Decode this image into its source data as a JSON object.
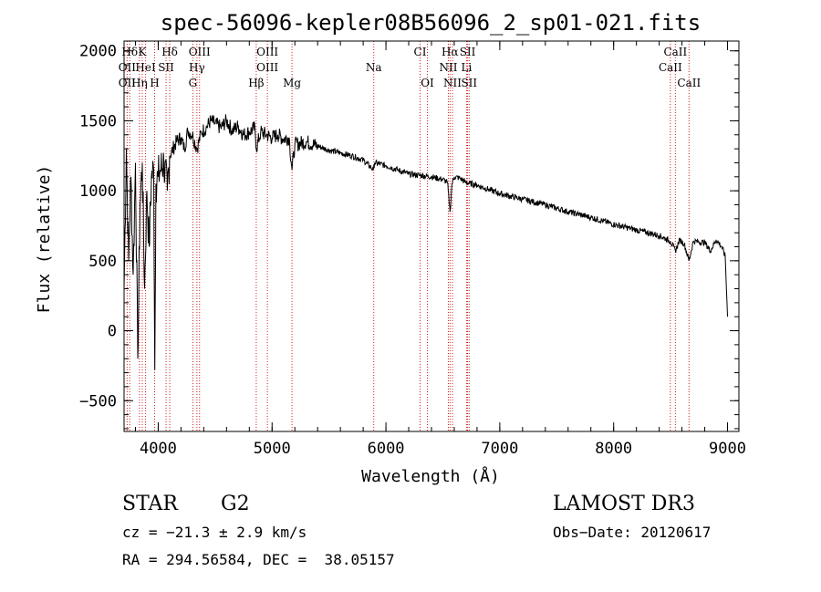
{
  "chart_data": {
    "type": "line",
    "title": "spec-56096-kepler08B56096_2_sp01-021.fits",
    "xlabel": "Wavelength (Å)",
    "ylabel": "Flux (relative)",
    "xlim": [
      3700,
      9100
    ],
    "ylim": [
      -720,
      2070
    ],
    "x_ticks": [
      4000,
      5000,
      6000,
      7000,
      8000,
      9000
    ],
    "y_ticks": [
      -500,
      0,
      500,
      1000,
      1500,
      2000
    ],
    "series": [
      {
        "name": "flux",
        "x": [
          3700,
          3720,
          3740,
          3760,
          3780,
          3800,
          3820,
          3840,
          3860,
          3880,
          3900,
          3920,
          3940,
          3960,
          3970,
          3980,
          4000,
          4020,
          4050,
          4080,
          4100,
          4130,
          4160,
          4200,
          4230,
          4260,
          4300,
          4340,
          4380,
          4420,
          4460,
          4500,
          4550,
          4600,
          4650,
          4700,
          4750,
          4800,
          4850,
          4861,
          4900,
          4950,
          5000,
          5050,
          5100,
          5150,
          5175,
          5200,
          5300,
          5400,
          5500,
          5600,
          5700,
          5800,
          5890,
          5900,
          6000,
          6100,
          6200,
          6300,
          6400,
          6500,
          6540,
          6563,
          6580,
          6600,
          6650,
          6700,
          6800,
          6900,
          7000,
          7200,
          7400,
          7600,
          7800,
          8000,
          8200,
          8400,
          8498,
          8542,
          8580,
          8620,
          8662,
          8700,
          8800,
          8850,
          8900,
          8950,
          8980,
          9000
        ],
        "values": [
          300,
          1300,
          500,
          1100,
          400,
          1200,
          -200,
          900,
          1200,
          300,
          1000,
          600,
          1100,
          1150,
          -280,
          1050,
          1100,
          1150,
          1200,
          1000,
          1250,
          1300,
          1350,
          1380,
          1300,
          1430,
          1400,
          1300,
          1420,
          1450,
          1500,
          1480,
          1450,
          1500,
          1430,
          1460,
          1400,
          1420,
          1450,
          1300,
          1420,
          1400,
          1380,
          1400,
          1370,
          1380,
          1150,
          1330,
          1350,
          1320,
          1290,
          1270,
          1250,
          1220,
          1150,
          1200,
          1180,
          1150,
          1120,
          1110,
          1100,
          1080,
          1060,
          850,
          1050,
          1100,
          1090,
          1060,
          1040,
          1010,
          980,
          940,
          900,
          850,
          810,
          760,
          720,
          680,
          640,
          570,
          650,
          620,
          500,
          640,
          630,
          570,
          650,
          600,
          530,
          100
        ]
      }
    ],
    "spectral_lines": [
      {
        "label": "Hδ",
        "x": 3750,
        "row": 0
      },
      {
        "label": "K",
        "x": 3860,
        "row": 0
      },
      {
        "label": "Hδ",
        "x": 4101,
        "row": 0
      },
      {
        "label": "OIII",
        "x": 4363,
        "row": 0
      },
      {
        "label": "OIII",
        "x": 4959,
        "row": 0
      },
      {
        "label": "CI",
        "x": 6300,
        "row": 0
      },
      {
        "label": "Hα",
        "x": 6563,
        "row": 0
      },
      {
        "label": "SII",
        "x": 6717,
        "row": 0
      },
      {
        "label": "CaII",
        "x": 8542,
        "row": 0
      },
      {
        "label": "OII",
        "x": 3727,
        "row": 1
      },
      {
        "label": "HeI",
        "x": 3889,
        "row": 1
      },
      {
        "label": "SII",
        "x": 4069,
        "row": 1
      },
      {
        "label": "Hγ",
        "x": 4340,
        "row": 1
      },
      {
        "label": "OIII",
        "x": 4959,
        "row": 1
      },
      {
        "label": "Na",
        "x": 5893,
        "row": 1
      },
      {
        "label": "NII",
        "x": 6548,
        "row": 1
      },
      {
        "label": "Li",
        "x": 6708,
        "row": 1
      },
      {
        "label": "CaII",
        "x": 8498,
        "row": 1
      },
      {
        "label": "OII",
        "x": 3727,
        "row": 2
      },
      {
        "label": "Hη",
        "x": 3835,
        "row": 2
      },
      {
        "label": "H",
        "x": 3968,
        "row": 2
      },
      {
        "label": "G",
        "x": 4304,
        "row": 2
      },
      {
        "label": "Hβ",
        "x": 4861,
        "row": 2
      },
      {
        "label": "Mg",
        "x": 5175,
        "row": 2
      },
      {
        "label": "OI",
        "x": 6364,
        "row": 2
      },
      {
        "label": "NII",
        "x": 6584,
        "row": 2
      },
      {
        "label": "SII",
        "x": 6731,
        "row": 2
      },
      {
        "label": "CaII",
        "x": 8662,
        "row": 2
      }
    ]
  },
  "info": {
    "object_class": "STAR",
    "subclass": "G2",
    "survey": "LAMOST DR3",
    "cz": "cz = −21.3 ± 2.9 km/s",
    "obs_date": "Obs−Date: 20120617",
    "radec": "RA = 294.56584, DEC =  38.05157"
  },
  "colors": {
    "line_marker": "#cc2222",
    "spectrum": "#000000",
    "axis": "#000000"
  }
}
